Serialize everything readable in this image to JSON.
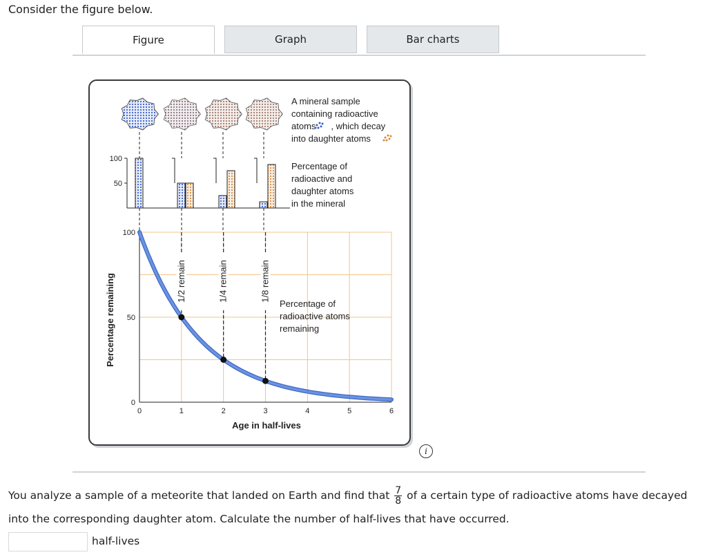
{
  "prompt": "Consider the figure below.",
  "tabs": [
    {
      "label": "Figure",
      "active": true
    },
    {
      "label": "Graph",
      "active": false
    },
    {
      "label": "Bar charts",
      "active": false
    }
  ],
  "figure": {
    "mineral_caption": [
      "A mineral sample",
      "containing radioactive",
      "atoms",
      ", which decay",
      "into daughter atoms"
    ],
    "bar_caption": [
      "Percentage of",
      "radioactive and",
      "daughter atoms",
      "in the mineral"
    ],
    "bar_axis_ticks": [
      "100",
      "50"
    ],
    "bars": [
      {
        "radioactive": 100,
        "daughter": 0
      },
      {
        "radioactive": 50,
        "daughter": 50
      },
      {
        "radioactive": 25,
        "daughter": 75
      },
      {
        "radioactive": 12.5,
        "daughter": 87.5
      }
    ],
    "remain_labels": [
      "1/2 remain",
      "1/4 remain",
      "1/8 remain"
    ],
    "curve_caption": [
      "Percentage of",
      "radioactive atoms",
      "remaining"
    ],
    "colors": {
      "radioactive": "#3b5fc9",
      "daughter": "#d98a3c",
      "curve": "#6d93e0",
      "grid": "#f2c48a"
    }
  },
  "chart_data": {
    "type": "line",
    "xlabel": "Age in half-lives",
    "ylabel": "Percentage remaining",
    "x_ticks": [
      "0",
      "1",
      "2",
      "3",
      "4",
      "5",
      "6"
    ],
    "y_ticks": [
      "100",
      "50",
      "0"
    ],
    "xlim": [
      0,
      6
    ],
    "ylim": [
      0,
      100
    ],
    "grid": true,
    "series": [
      {
        "x": [
          0,
          1,
          2,
          3,
          4,
          5,
          6
        ],
        "values": [
          100,
          50,
          25,
          12.5,
          6.25,
          3.125,
          1.5625
        ]
      }
    ],
    "highlighted_points": [
      {
        "x": 1,
        "y": 50
      },
      {
        "x": 2,
        "y": 25
      },
      {
        "x": 3,
        "y": 12.5
      }
    ]
  },
  "question": {
    "before_fraction": "You analyze a sample of a meteorite that landed on Earth and find that",
    "fraction_numerator": "7",
    "fraction_denominator": "8",
    "after_fraction": "of a certain type of radioactive atoms have decayed into the corresponding daughter atom. Calculate the number of half-lives that have occurred.",
    "answer_value": "",
    "unit": "half-lives"
  }
}
